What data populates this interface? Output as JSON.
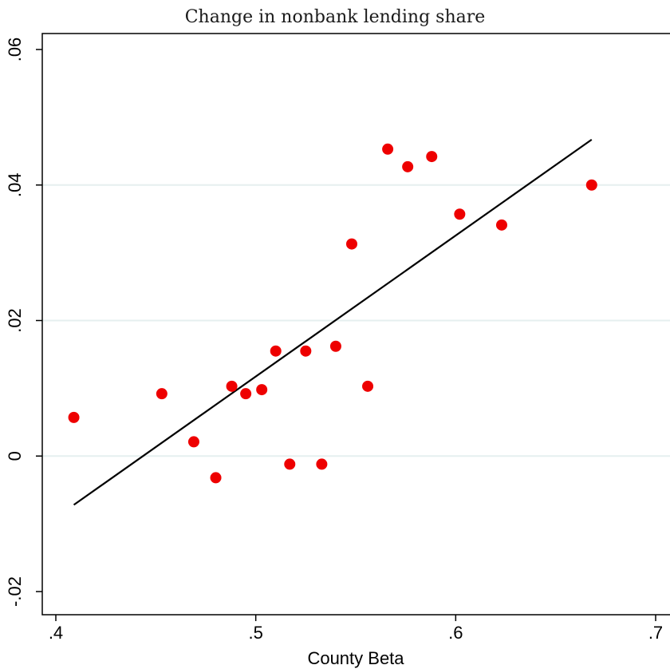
{
  "chart_data": {
    "type": "scatter",
    "title": "Change in nonbank lending share",
    "xlabel": "County Beta",
    "ylabel": "",
    "xlim": [
      0.4,
      0.7
    ],
    "ylim": [
      -0.02,
      0.06
    ],
    "xticks": [
      0.4,
      0.5,
      0.6,
      0.7
    ],
    "xtick_labels": [
      ".4",
      ".5",
      ".6",
      ".7"
    ],
    "yticks": [
      -0.02,
      0,
      0.02,
      0.04,
      0.06
    ],
    "ytick_labels": [
      "-.02",
      "0",
      ".02",
      ".04",
      ".06"
    ],
    "grid": "horizontal",
    "series": [
      {
        "type": "scatter",
        "color": "#ee0000",
        "points": [
          {
            "x": 0.409,
            "y": 0.0057
          },
          {
            "x": 0.453,
            "y": 0.0092
          },
          {
            "x": 0.469,
            "y": 0.0021
          },
          {
            "x": 0.48,
            "y": -0.0032
          },
          {
            "x": 0.488,
            "y": 0.0103
          },
          {
            "x": 0.495,
            "y": 0.0092
          },
          {
            "x": 0.503,
            "y": 0.0098
          },
          {
            "x": 0.51,
            "y": 0.0155
          },
          {
            "x": 0.517,
            "y": -0.0012
          },
          {
            "x": 0.525,
            "y": 0.0155
          },
          {
            "x": 0.533,
            "y": -0.0012
          },
          {
            "x": 0.54,
            "y": 0.0162
          },
          {
            "x": 0.548,
            "y": 0.0313
          },
          {
            "x": 0.556,
            "y": 0.0103
          },
          {
            "x": 0.566,
            "y": 0.0453
          },
          {
            "x": 0.576,
            "y": 0.0427
          },
          {
            "x": 0.588,
            "y": 0.0442
          },
          {
            "x": 0.602,
            "y": 0.0357
          },
          {
            "x": 0.623,
            "y": 0.0341
          },
          {
            "x": 0.668,
            "y": 0.04
          }
        ]
      },
      {
        "type": "line",
        "color": "#000000",
        "points": [
          {
            "x": 0.409,
            "y": -0.0072
          },
          {
            "x": 0.668,
            "y": 0.0467
          }
        ]
      }
    ]
  }
}
